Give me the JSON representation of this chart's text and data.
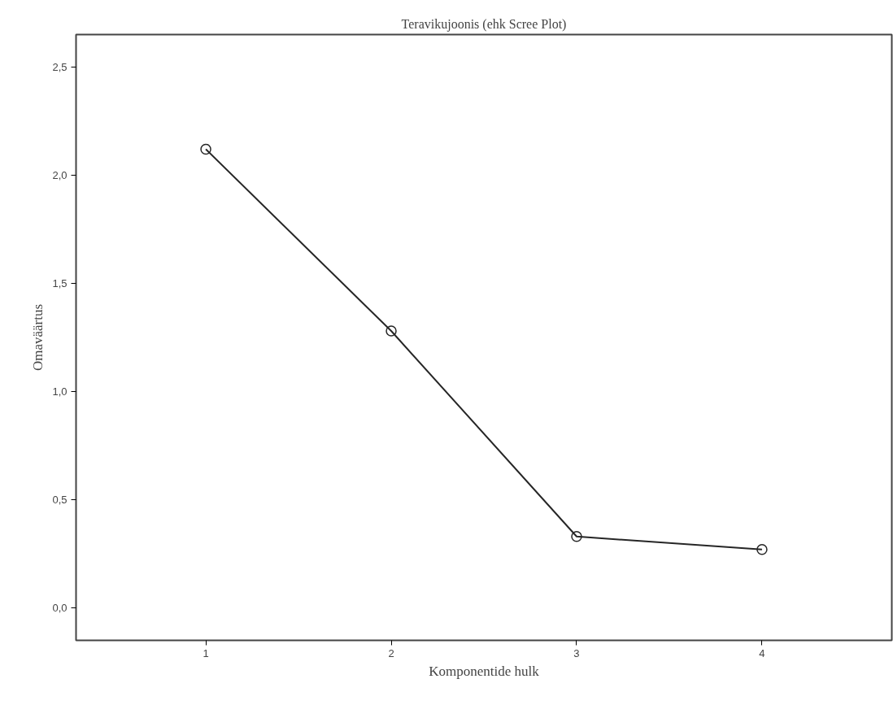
{
  "chart_data": {
    "type": "line",
    "title": "Teravikujoonis (ehk Scree Plot)",
    "xlabel": "Komponentide hulk",
    "ylabel": "Omaväärtus",
    "x": [
      1,
      2,
      3,
      4
    ],
    "series": [
      {
        "color": "#262626",
        "values": [
          2.12,
          1.28,
          0.33,
          0.27
        ]
      }
    ],
    "xlim": [
      0.3,
      4.7
    ],
    "xticks": [
      1,
      2,
      3,
      4
    ],
    "ylim": [
      -0.15,
      2.65
    ],
    "yticks": [
      {
        "value": 0,
        "label": "0,0"
      },
      {
        "value": 0.5,
        "label": "0,5"
      },
      {
        "value": 1,
        "label": "1,0"
      },
      {
        "value": 1.5,
        "label": "1,5"
      },
      {
        "value": 2,
        "label": "2,0"
      },
      {
        "value": 2.5,
        "label": "2,5"
      }
    ],
    "grid": false,
    "marker": "circle",
    "line_style": "solid"
  }
}
